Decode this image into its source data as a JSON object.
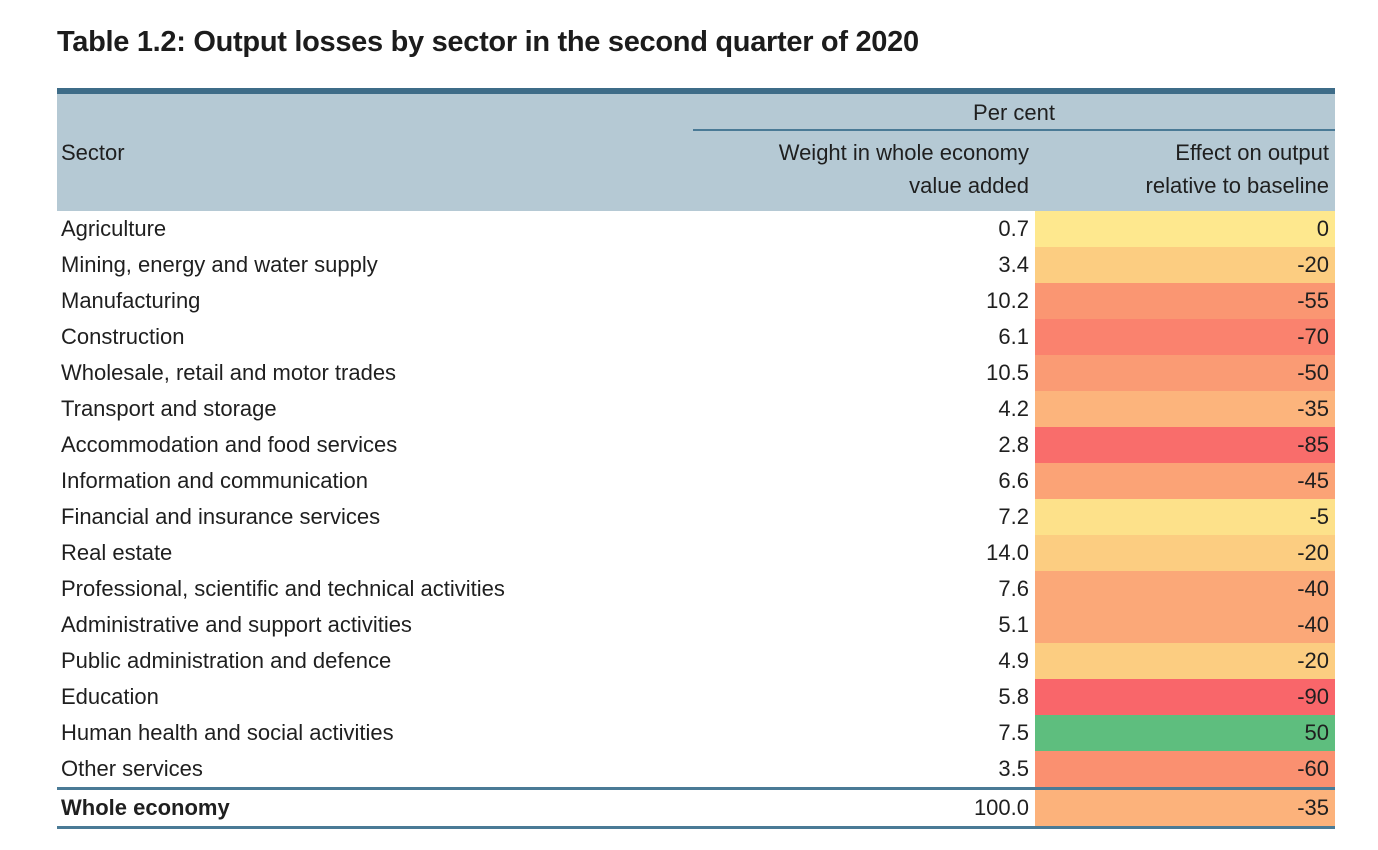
{
  "title": "Table 1.2: Output losses by sector in the second quarter of 2020",
  "table": {
    "group_header": "Per cent",
    "columns": {
      "sector": "Sector",
      "weight_line1": "Weight in whole economy",
      "weight_line2": "value added",
      "effect_line1": "Effect on output",
      "effect_line2": "relative to baseline"
    },
    "rows": [
      {
        "sector": "Agriculture",
        "weight": "0.7",
        "effect": "0",
        "effect_color": "#fee88e"
      },
      {
        "sector": "Mining, energy and water supply",
        "weight": "3.4",
        "effect": "-20",
        "effect_color": "#fccd81"
      },
      {
        "sector": "Manufacturing",
        "weight": "10.2",
        "effect": "-55",
        "effect_color": "#fa9672"
      },
      {
        "sector": "Construction",
        "weight": "6.1",
        "effect": "-70",
        "effect_color": "#fa826e"
      },
      {
        "sector": "Wholesale, retail and motor trades",
        "weight": "10.5",
        "effect": "-50",
        "effect_color": "#fa9b74"
      },
      {
        "sector": "Transport and storage",
        "weight": "4.2",
        "effect": "-35",
        "effect_color": "#fcb47c"
      },
      {
        "sector": "Accommodation and food services",
        "weight": "2.8",
        "effect": "-85",
        "effect_color": "#f96d6b"
      },
      {
        "sector": "Information and communication",
        "weight": "6.6",
        "effect": "-45",
        "effect_color": "#fba376"
      },
      {
        "sector": "Financial and insurance services",
        "weight": "7.2",
        "effect": "-5",
        "effect_color": "#fde18a"
      },
      {
        "sector": "Real estate",
        "weight": "14.0",
        "effect": "-20",
        "effect_color": "#fccd81"
      },
      {
        "sector": "Professional, scientific and technical activities",
        "weight": "7.6",
        "effect": "-40",
        "effect_color": "#fba878"
      },
      {
        "sector": "Administrative and support activities",
        "weight": "5.1",
        "effect": "-40",
        "effect_color": "#fba878"
      },
      {
        "sector": "Public administration and defence",
        "weight": "4.9",
        "effect": "-20",
        "effect_color": "#fccd81"
      },
      {
        "sector": "Education",
        "weight": "5.8",
        "effect": "-90",
        "effect_color": "#f9666a"
      },
      {
        "sector": "Human health and social activities",
        "weight": "7.5",
        "effect": "50",
        "effect_color": "#5ebe7e"
      },
      {
        "sector": "Other services",
        "weight": "3.5",
        "effect": "-60",
        "effect_color": "#fa9070"
      }
    ],
    "total_row": {
      "sector": "Whole economy",
      "weight": "100.0",
      "effect": "-35",
      "effect_color": "#fcb27b"
    },
    "colors": {
      "header_bg": "#b5c9d4",
      "header_top_border": "#3e6c88",
      "rule": "#4a7a96",
      "text": "#1f1f1f"
    }
  }
}
